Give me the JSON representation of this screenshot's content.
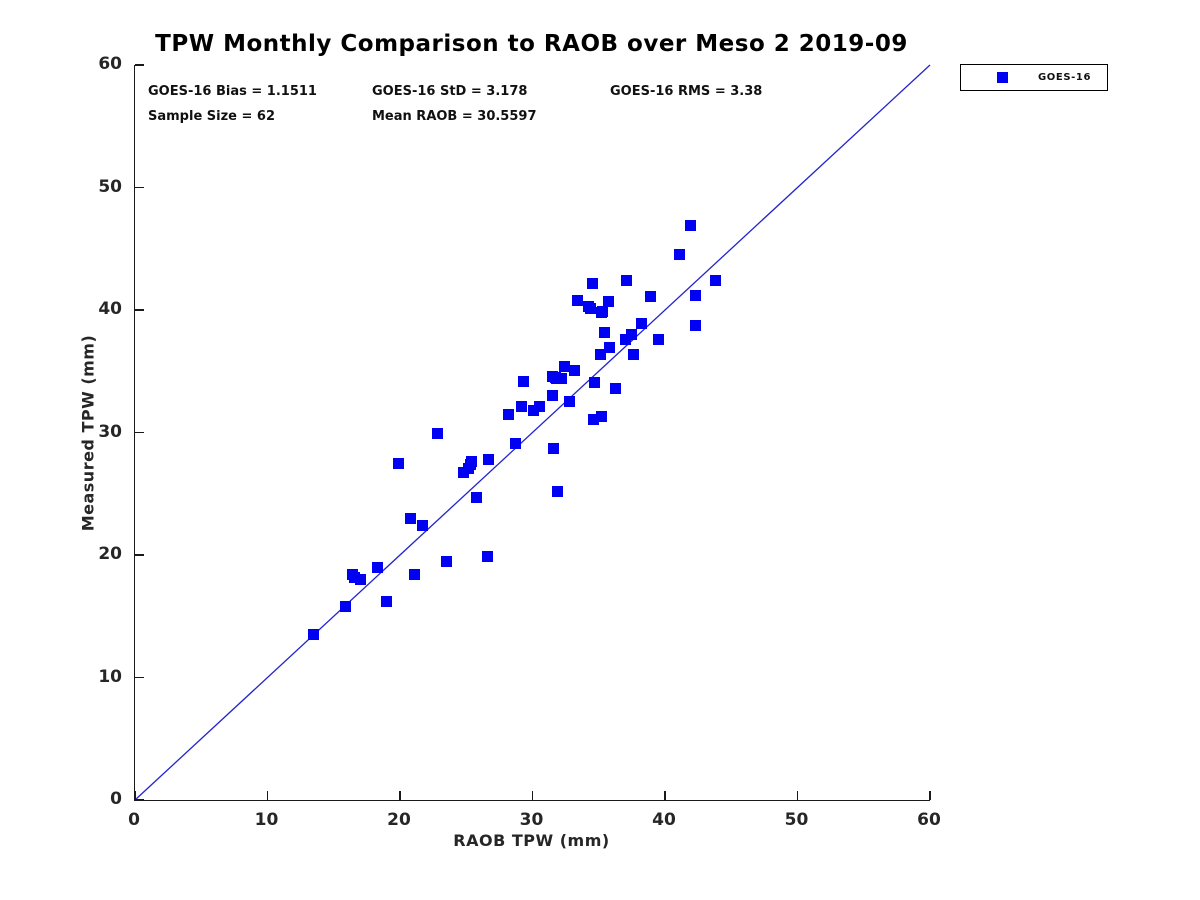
{
  "title": "TPW Monthly Comparison to RAOB over Meso 2 2019-09",
  "stats": {
    "bias": "GOES-16 Bias = 1.1511",
    "std": "GOES-16 StD = 3.178",
    "rms": "GOES-16 RMS = 3.38",
    "sample_size": "Sample Size = 62",
    "mean_raob": "Mean RAOB = 30.5597"
  },
  "legend": {
    "entries": [
      {
        "label": "GOES-16",
        "marker_color": "#0000f2"
      }
    ]
  },
  "colors": {
    "marker": "#0000f2",
    "reference_line": "#2323cf",
    "axis": "#1a1a1a",
    "tick_text": "#262626"
  },
  "chart_data": {
    "type": "scatter",
    "title": "TPW Monthly Comparison to RAOB over Meso 2 2019-09",
    "xlabel": "RAOB TPW (mm)",
    "ylabel": "Measured TPW (mm)",
    "xlim": [
      0,
      60
    ],
    "ylim": [
      0,
      60
    ],
    "xticks": [
      0,
      10,
      20,
      30,
      40,
      50,
      60
    ],
    "yticks": [
      0,
      10,
      20,
      30,
      40,
      50,
      60
    ],
    "grid": false,
    "legend_position": "outside-top-right",
    "reference_line": {
      "from": [
        0,
        0
      ],
      "to": [
        60,
        60
      ],
      "meaning": "1:1 identity line"
    },
    "series": [
      {
        "name": "GOES-16",
        "marker": "filled-square",
        "color": "#0000f2",
        "points": [
          [
            13.5,
            13.5
          ],
          [
            15.9,
            15.8
          ],
          [
            16.4,
            18.4
          ],
          [
            16.6,
            18.2
          ],
          [
            17.0,
            18.0
          ],
          [
            18.3,
            19.0
          ],
          [
            19.0,
            16.2
          ],
          [
            21.1,
            18.4
          ],
          [
            23.5,
            19.5
          ],
          [
            26.6,
            19.9
          ],
          [
            19.9,
            27.5
          ],
          [
            20.8,
            23.0
          ],
          [
            21.7,
            22.4
          ],
          [
            22.8,
            29.9
          ],
          [
            24.8,
            26.7
          ],
          [
            25.2,
            27.1
          ],
          [
            25.3,
            27.4
          ],
          [
            25.4,
            27.6
          ],
          [
            26.7,
            27.8
          ],
          [
            25.8,
            24.7
          ],
          [
            28.7,
            29.1
          ],
          [
            28.2,
            31.5
          ],
          [
            29.2,
            32.1
          ],
          [
            30.1,
            31.8
          ],
          [
            30.5,
            32.1
          ],
          [
            31.6,
            28.7
          ],
          [
            31.9,
            25.2
          ],
          [
            34.5,
            42.2
          ],
          [
            37.1,
            42.4
          ],
          [
            33.4,
            40.8
          ],
          [
            35.7,
            40.7
          ],
          [
            34.2,
            40.3
          ],
          [
            34.4,
            40.1
          ],
          [
            35.2,
            39.8
          ],
          [
            35.3,
            39.9
          ],
          [
            38.9,
            41.1
          ],
          [
            43.8,
            42.4
          ],
          [
            42.3,
            41.2
          ],
          [
            38.2,
            38.9
          ],
          [
            35.4,
            38.2
          ],
          [
            42.3,
            38.7
          ],
          [
            37.5,
            38.0
          ],
          [
            37.0,
            37.6
          ],
          [
            39.5,
            37.6
          ],
          [
            35.8,
            36.9
          ],
          [
            35.1,
            36.4
          ],
          [
            37.6,
            36.4
          ],
          [
            32.4,
            35.4
          ],
          [
            33.2,
            35.1
          ],
          [
            31.5,
            34.6
          ],
          [
            31.8,
            34.4
          ],
          [
            31.7,
            34.5
          ],
          [
            32.2,
            34.4
          ],
          [
            29.3,
            34.2
          ],
          [
            34.7,
            34.1
          ],
          [
            36.3,
            33.6
          ],
          [
            31.5,
            33.0
          ],
          [
            32.8,
            32.5
          ],
          [
            34.6,
            31.1
          ],
          [
            35.2,
            31.3
          ],
          [
            41.9,
            46.9
          ],
          [
            41.1,
            44.5
          ]
        ]
      }
    ],
    "annotations": [
      "GOES-16 Bias = 1.1511",
      "GOES-16 StD = 3.178",
      "GOES-16 RMS = 3.38",
      "Sample Size = 62",
      "Mean RAOB = 30.5597"
    ]
  }
}
